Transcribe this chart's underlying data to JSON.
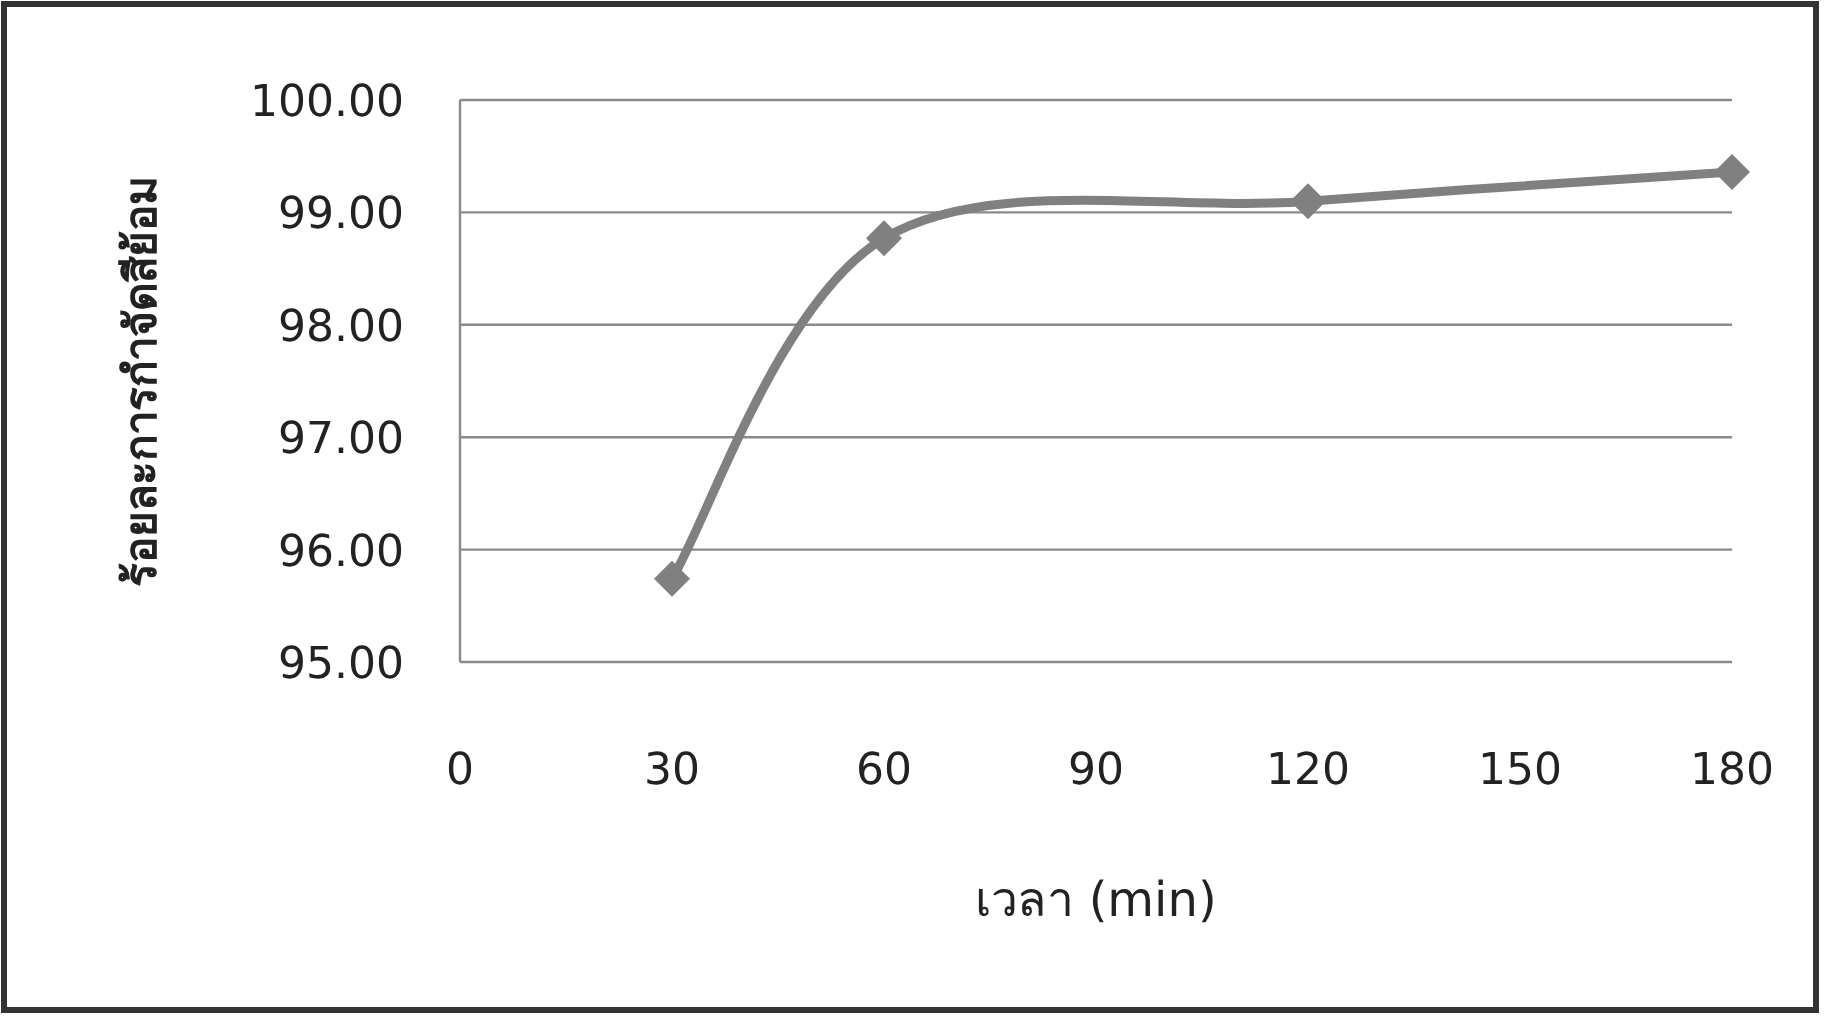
{
  "chart_data": {
    "type": "line",
    "xlabel": "เวลา (min)",
    "ylabel": "ร้อยละการกำจัดสีย้อม",
    "x": [
      30,
      60,
      120,
      180
    ],
    "series": [
      {
        "color": "#808080",
        "values": [
          95.74,
          98.77,
          99.1,
          99.36
        ]
      }
    ],
    "xlim": [
      0,
      180
    ],
    "xticks": [
      0,
      30,
      60,
      90,
      120,
      150,
      180
    ],
    "ylim": [
      95,
      100
    ],
    "yticks": [
      {
        "value": 95,
        "label": "95.00"
      },
      {
        "value": 96,
        "label": "96.00"
      },
      {
        "value": 97,
        "label": "97.00"
      },
      {
        "value": 98,
        "label": "98.00"
      },
      {
        "value": 99,
        "label": "99.00"
      },
      {
        "value": 100,
        "label": "100.00"
      }
    ],
    "grid": "y",
    "marker": "diamond",
    "line_style": "solid"
  }
}
